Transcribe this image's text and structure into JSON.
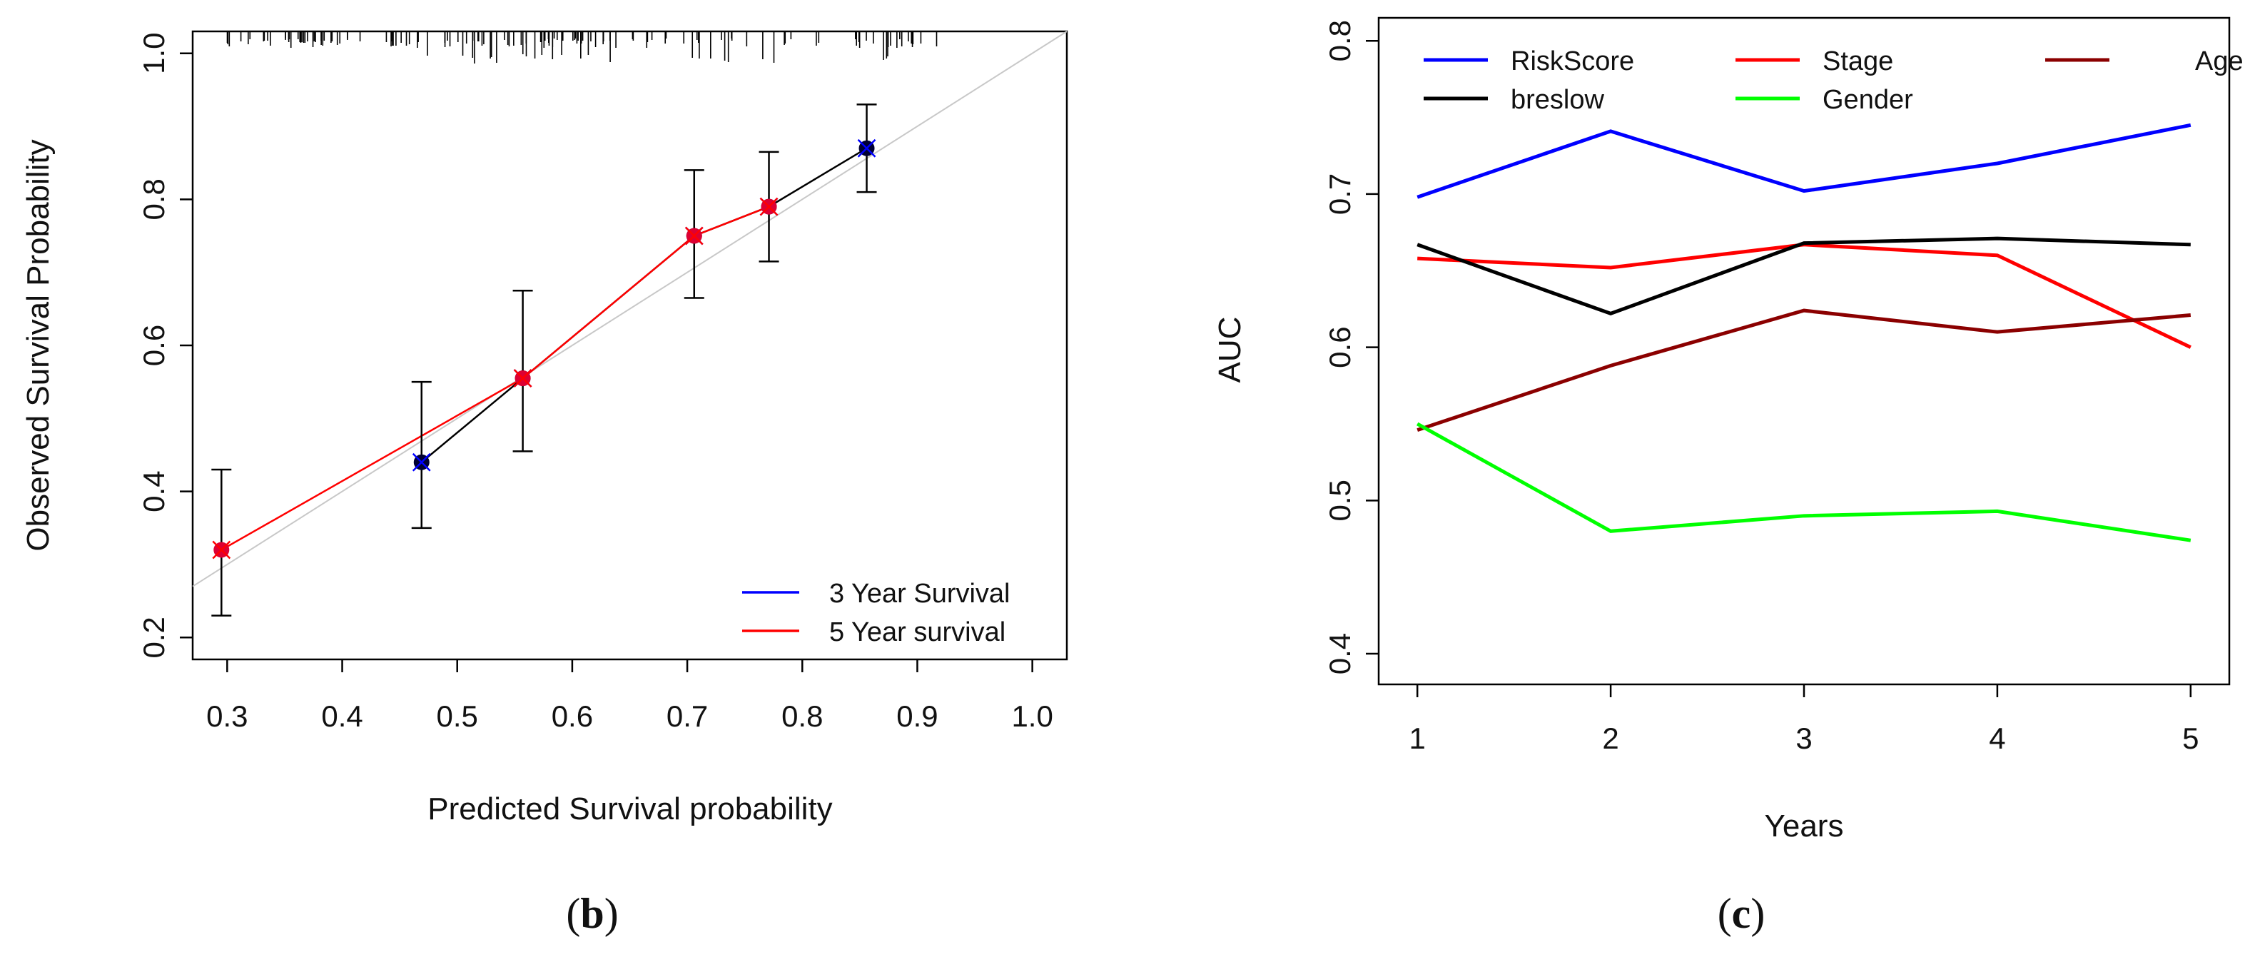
{
  "chart_data": [
    {
      "panel": "b",
      "type": "scatter",
      "title": "",
      "xlabel": "Predicted Survival probability",
      "ylabel": "Observed Survival Probability",
      "xlim": [
        0.27,
        1.03
      ],
      "ylim": [
        0.17,
        1.03
      ],
      "xticks": [
        0.3,
        0.4,
        0.5,
        0.6,
        0.7,
        0.8,
        0.9,
        1.0
      ],
      "xtick_labels": [
        "0.3",
        "0.4",
        "0.5",
        "0.6",
        "0.7",
        "0.8",
        "0.9",
        "1.0"
      ],
      "yticks": [
        0.2,
        0.4,
        0.6,
        0.8,
        1.0
      ],
      "ytick_labels": [
        "0.2",
        "0.4",
        "0.6",
        "0.8",
        "1.0"
      ],
      "reference_line": {
        "x": [
          0.27,
          1.03
        ],
        "y": [
          0.27,
          1.03
        ],
        "color": "#c8c8c8"
      },
      "series": [
        {
          "name": "3 Year Survival",
          "color": "#0000ff",
          "x": [
            0.469,
            0.557,
            0.706,
            0.771,
            0.856
          ],
          "observed": [
            0.44,
            0.555,
            0.75,
            0.79,
            0.87
          ],
          "ci_lower": [
            0.35,
            0.455,
            0.665,
            0.715,
            0.81
          ],
          "ci_upper": [
            0.55,
            0.675,
            0.84,
            0.865,
            0.93
          ],
          "line_color": "#000000"
        },
        {
          "name": "5 Year survival",
          "color": "#ff0000",
          "x": [
            0.295,
            0.557,
            0.706,
            0.771
          ],
          "observed": [
            0.32,
            0.555,
            0.75,
            0.79
          ],
          "ci_lower": [
            0.23
          ],
          "ci_upper": [
            0.43
          ],
          "line_color": "#ff0000"
        }
      ],
      "rug": "top",
      "legend": {
        "position": "bottom-right",
        "entries": [
          "3 Year Survival",
          "5 Year survival"
        ]
      }
    },
    {
      "panel": "c",
      "type": "line",
      "title": "",
      "xlabel": "Years",
      "ylabel": "AUC",
      "x": [
        1,
        2,
        3,
        4,
        5
      ],
      "xlim": [
        0.8,
        5.2
      ],
      "ylim": [
        0.38,
        0.815
      ],
      "xticks": [
        1,
        2,
        3,
        4,
        5
      ],
      "xtick_labels": [
        "1",
        "2",
        "3",
        "4",
        "5"
      ],
      "yticks": [
        0.4,
        0.5,
        0.6,
        0.7,
        0.8
      ],
      "ytick_labels": [
        "0.4",
        "0.5",
        "0.6",
        "0.7",
        "0.8"
      ],
      "series": [
        {
          "name": "RiskScore",
          "color": "#0000ff",
          "values": [
            0.698,
            0.741,
            0.702,
            0.72,
            0.745
          ]
        },
        {
          "name": "Stage",
          "color": "#ff0000",
          "values": [
            0.658,
            0.652,
            0.667,
            0.66,
            0.6
          ]
        },
        {
          "name": "Age",
          "color": "#8b0000",
          "values": [
            0.546,
            0.588,
            0.624,
            0.61,
            0.621
          ]
        },
        {
          "name": "breslow",
          "color": "#000000",
          "values": [
            0.667,
            0.622,
            0.668,
            0.671,
            0.667
          ]
        },
        {
          "name": "Gender",
          "color": "#00ff00",
          "values": [
            0.55,
            0.48,
            0.49,
            0.493,
            0.474
          ]
        }
      ],
      "legend": {
        "position": "top",
        "entries": [
          "RiskScore",
          "Stage",
          "Age",
          "breslow",
          "Gender"
        ]
      }
    }
  ],
  "captions": {
    "b": "b",
    "c": "c"
  }
}
